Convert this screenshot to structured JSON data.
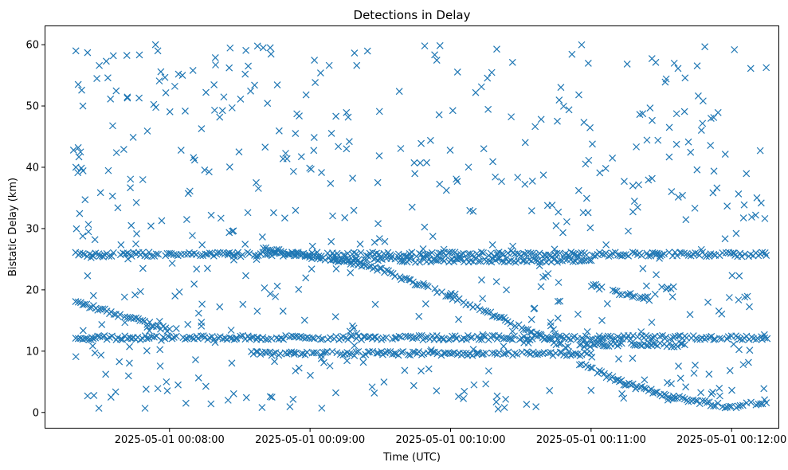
{
  "chart_data": {
    "type": "scatter",
    "title": "Detections in Delay",
    "xlabel": "Time (UTC)",
    "ylabel": "Bistatic Delay (km)",
    "marker": "x",
    "color": "#1f77b4",
    "grid": false,
    "legend": "none",
    "x_unit": "UTC time",
    "xlim": [
      "2025-05-01 00:07:07",
      "2025-05-01 00:12:20"
    ],
    "ylim": [
      -2.5,
      63
    ],
    "x_ticks": [
      "2025-05-01 00:08:00",
      "2025-05-01 00:09:00",
      "2025-05-01 00:10:00",
      "2025-05-01 00:11:00",
      "2025-05-01 00:12:00"
    ],
    "y_ticks": [
      0,
      10,
      20,
      30,
      40,
      50,
      60
    ],
    "time_range": [
      "2025-05-01 00:07:20",
      "2025-05-01 00:12:15"
    ],
    "tracks": [
      {
        "description": "descending track",
        "points": [
          [
            "2025-05-01 00:07:20",
            18.0
          ],
          [
            "2025-05-01 00:08:00",
            13.5
          ]
        ]
      },
      {
        "description": "descending track",
        "points": [
          [
            "2025-05-01 00:08:40",
            26.8
          ],
          [
            "2025-05-01 00:09:10",
            24.8
          ],
          [
            "2025-05-01 00:09:25",
            24.0
          ],
          [
            "2025-05-01 00:10:00",
            19.0
          ],
          [
            "2025-05-01 00:10:50",
            10.5
          ]
        ]
      },
      {
        "description": "descending track",
        "points": [
          [
            "2025-05-01 00:10:55",
            8.0
          ],
          [
            "2025-05-01 00:11:15",
            4.6
          ],
          [
            "2025-05-01 00:11:35",
            2.5
          ],
          [
            "2025-05-01 00:12:00",
            0.9
          ]
        ]
      },
      {
        "description": "ascending track",
        "points": [
          [
            "2025-05-01 00:12:02",
            0.9
          ],
          [
            "2025-05-01 00:12:15",
            1.9
          ]
        ]
      },
      {
        "description": "descending track",
        "points": [
          [
            "2025-05-01 00:11:00",
            20.8
          ],
          [
            "2025-05-01 00:11:15",
            19.2
          ],
          [
            "2025-05-01 00:11:25",
            18.6
          ]
        ]
      },
      {
        "description": "horizontal band",
        "points": [
          [
            "2025-05-01 00:07:20",
            25.8
          ],
          [
            "2025-05-01 00:12:15",
            25.8
          ]
        ]
      },
      {
        "description": "horizontal band",
        "points": [
          [
            "2025-05-01 00:07:20",
            12.2
          ],
          [
            "2025-05-01 00:12:15",
            12.2
          ]
        ]
      },
      {
        "description": "horizontal band",
        "points": [
          [
            "2025-05-01 00:08:35",
            9.6
          ],
          [
            "2025-05-01 00:11:00",
            9.6
          ]
        ]
      },
      {
        "description": "horizontal band",
        "points": [
          [
            "2025-05-01 00:09:10",
            24.8
          ],
          [
            "2025-05-01 00:11:00",
            24.8
          ]
        ]
      },
      {
        "description": "horizontal band",
        "points": [
          [
            "2025-05-01 00:10:55",
            11.0
          ],
          [
            "2025-05-01 00:11:40",
            11.0
          ]
        ]
      },
      {
        "description": "horizontal band",
        "points": [
          [
            "2025-05-01 00:11:30",
            20.5
          ],
          [
            "2025-05-01 00:11:35",
            20.5
          ]
        ]
      }
    ],
    "noise": {
      "count": 520,
      "y_range": [
        0.5,
        60
      ]
    },
    "noise_points": [
      [
        "2025-05-01 00:07:20",
        59.0
      ],
      [
        "2025-05-01 00:07:21",
        53.5
      ],
      [
        "2025-05-01 00:07:23",
        50.0
      ],
      [
        "2025-05-01 00:07:25",
        58.7
      ],
      [
        "2025-05-01 00:07:33",
        57.3
      ],
      [
        "2025-05-01 00:07:36",
        58.2
      ],
      [
        "2025-05-01 00:07:19",
        42.8
      ],
      [
        "2025-05-01 00:07:21",
        43.2
      ],
      [
        "2025-05-01 00:07:22",
        42.5
      ],
      [
        "2025-05-01 00:07:20",
        40.0
      ],
      [
        "2025-05-01 00:07:30",
        56.6
      ],
      [
        "2025-05-01 00:07:42",
        51.3
      ],
      [
        "2025-05-01 00:07:47",
        51.3
      ],
      [
        "2025-05-01 00:07:54",
        60.0
      ],
      [
        "2025-05-01 00:07:55",
        59.0
      ],
      [
        "2025-05-01 00:08:10",
        55.8
      ],
      [
        "2025-05-01 00:08:40",
        59.5
      ],
      [
        "2025-05-01 00:08:43",
        59.5
      ],
      [
        "2025-05-01 00:07:20",
        9.1
      ],
      [
        "2025-05-01 00:07:25",
        2.7
      ],
      [
        "2025-05-01 00:07:35",
        2.5
      ],
      [
        "2025-05-01 00:07:50",
        3.8
      ],
      [
        "2025-05-01 00:07:55",
        3.9
      ],
      [
        "2025-05-01 00:08:07",
        1.5
      ],
      [
        "2025-05-01 00:08:25",
        2.0
      ],
      [
        "2025-05-01 00:09:05",
        0.7
      ],
      [
        "2025-05-01 00:10:10",
        4.5
      ],
      [
        "2025-05-01 00:10:23",
        0.8
      ],
      [
        "2025-05-01 00:11:00",
        3.6
      ],
      [
        "2025-05-01 00:12:05",
        7.8
      ]
    ]
  }
}
